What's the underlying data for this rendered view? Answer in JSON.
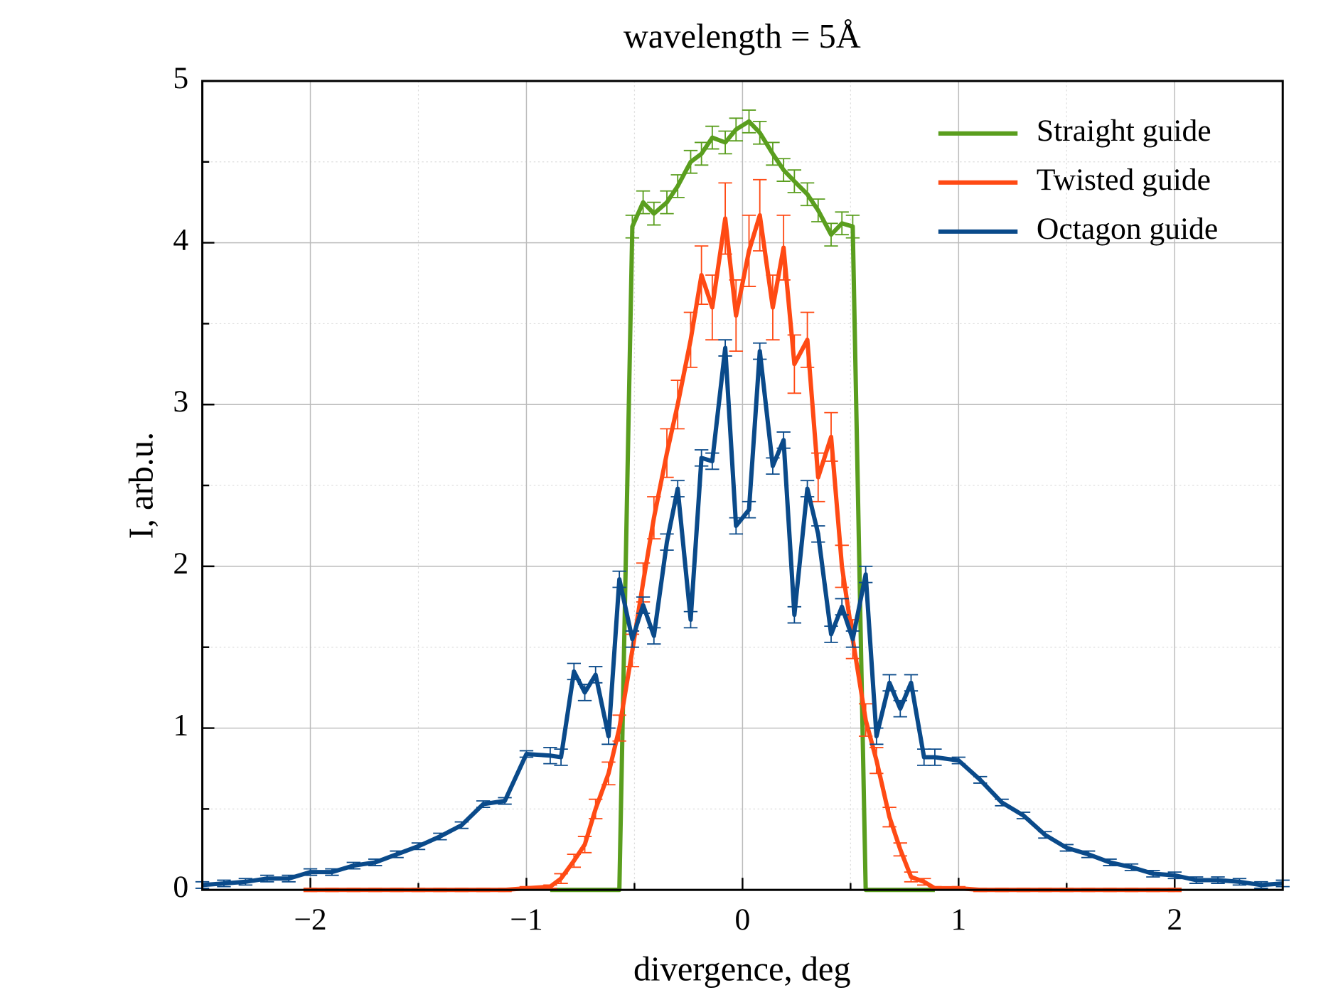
{
  "chart_data": {
    "type": "line",
    "title": "wavelength = 5Å",
    "xlabel": "divergence, deg",
    "ylabel": "I, arb.u.",
    "x": [
      -2.5,
      -2.4,
      -2.3,
      -2.2,
      -2.1,
      -2.0,
      -1.9,
      -1.8,
      -1.7,
      -1.6,
      -1.5,
      -1.4,
      -1.3,
      -1.2,
      -1.1,
      -1.0,
      -0.89,
      -0.84,
      -0.78,
      -0.73,
      -0.68,
      -0.62,
      -0.57,
      -0.51,
      -0.46,
      -0.41,
      -0.35,
      -0.3,
      -0.24,
      -0.19,
      -0.14,
      -0.08,
      -0.03,
      0.03,
      0.08,
      0.14,
      0.19,
      0.24,
      0.3,
      0.35,
      0.41,
      0.46,
      0.51,
      0.57,
      0.62,
      0.68,
      0.73,
      0.78,
      0.84,
      0.89,
      1.0,
      1.1,
      1.2,
      1.3,
      1.4,
      1.5,
      1.6,
      1.7,
      1.8,
      1.9,
      2.0,
      2.1,
      2.2,
      2.3,
      2.4,
      2.5
    ],
    "series": [
      {
        "name": "Straight guide",
        "color": "#5a9e1e",
        "values": [
          null,
          null,
          null,
          null,
          null,
          null,
          null,
          null,
          null,
          null,
          null,
          null,
          null,
          null,
          null,
          null,
          0,
          0,
          0,
          0,
          0,
          0,
          0,
          4.1,
          4.25,
          4.18,
          4.25,
          4.35,
          4.5,
          4.55,
          4.65,
          4.62,
          4.7,
          4.75,
          4.68,
          4.55,
          4.45,
          4.38,
          4.3,
          4.2,
          4.05,
          4.12,
          4.1,
          0,
          0,
          0,
          0,
          0,
          0,
          0,
          null,
          null,
          null,
          null,
          null,
          null,
          null,
          null,
          null,
          null,
          null,
          null,
          null,
          null,
          null,
          null
        ],
        "errors": [
          null,
          null,
          null,
          null,
          null,
          null,
          null,
          null,
          null,
          null,
          null,
          null,
          null,
          null,
          null,
          null,
          0,
          0,
          0,
          0,
          0,
          0,
          0,
          0.07,
          0.07,
          0.07,
          0.07,
          0.07,
          0.07,
          0.07,
          0.07,
          0.07,
          0.07,
          0.07,
          0.07,
          0.07,
          0.07,
          0.07,
          0.07,
          0.07,
          0.07,
          0.07,
          0.07,
          0,
          0,
          0,
          0,
          0,
          0,
          0,
          null,
          null,
          null,
          null,
          null,
          null,
          null,
          null,
          null,
          null,
          null,
          null,
          null,
          null,
          null,
          null
        ]
      },
      {
        "name": "Twisted guide",
        "color": "#ff4a14",
        "values": [
          null,
          null,
          null,
          null,
          null,
          0,
          0,
          0,
          0,
          0,
          0,
          0,
          0,
          0,
          0,
          0.01,
          0.02,
          0.07,
          0.18,
          0.28,
          0.5,
          0.72,
          1.0,
          1.48,
          1.9,
          2.3,
          2.7,
          3.0,
          3.4,
          3.8,
          3.6,
          4.15,
          3.55,
          3.95,
          4.17,
          3.6,
          3.97,
          3.25,
          3.4,
          2.55,
          2.8,
          2.0,
          1.55,
          1.05,
          0.8,
          0.45,
          0.25,
          0.08,
          0.05,
          0.01,
          0.01,
          0,
          0,
          0,
          0,
          0,
          0,
          0,
          0,
          0,
          0,
          null,
          null,
          null,
          null,
          null
        ],
        "errors": [
          null,
          null,
          null,
          null,
          null,
          0.01,
          0.01,
          0.01,
          0.01,
          0.01,
          0.01,
          0.01,
          0.01,
          0.01,
          0.01,
          0.01,
          0.01,
          0.03,
          0.04,
          0.05,
          0.06,
          0.07,
          0.08,
          0.1,
          0.12,
          0.13,
          0.15,
          0.15,
          0.17,
          0.18,
          0.2,
          0.22,
          0.22,
          0.22,
          0.22,
          0.2,
          0.2,
          0.18,
          0.17,
          0.15,
          0.15,
          0.13,
          0.12,
          0.1,
          0.08,
          0.06,
          0.04,
          0.03,
          0.02,
          0.01,
          0.01,
          0.01,
          0.01,
          0.01,
          0.01,
          0.01,
          0.01,
          0.01,
          0.01,
          0.01,
          0.01,
          null,
          null,
          null,
          null,
          null
        ]
      },
      {
        "name": "Octagon guide",
        "color": "#0a4a8a",
        "values": [
          0.03,
          0.04,
          0.05,
          0.07,
          0.07,
          0.11,
          0.11,
          0.15,
          0.17,
          0.22,
          0.27,
          0.33,
          0.4,
          0.53,
          0.55,
          0.84,
          0.83,
          0.82,
          1.35,
          1.22,
          1.33,
          0.95,
          1.92,
          1.55,
          1.76,
          1.57,
          2.15,
          2.48,
          1.67,
          2.67,
          2.65,
          3.35,
          2.25,
          2.35,
          3.33,
          2.62,
          2.78,
          1.7,
          2.48,
          2.2,
          1.58,
          1.75,
          1.55,
          1.95,
          0.95,
          1.28,
          1.12,
          1.28,
          0.82,
          0.82,
          0.8,
          0.68,
          0.54,
          0.46,
          0.34,
          0.26,
          0.22,
          0.17,
          0.14,
          0.1,
          0.09,
          0.06,
          0.06,
          0.05,
          0.03,
          0.04
        ],
        "errors": [
          0.02,
          0.02,
          0.02,
          0.02,
          0.02,
          0.02,
          0.02,
          0.02,
          0.02,
          0.02,
          0.02,
          0.02,
          0.02,
          0.02,
          0.02,
          0.02,
          0.05,
          0.05,
          0.05,
          0.05,
          0.05,
          0.05,
          0.05,
          0.05,
          0.05,
          0.05,
          0.05,
          0.05,
          0.05,
          0.05,
          0.05,
          0.05,
          0.05,
          0.05,
          0.05,
          0.05,
          0.05,
          0.05,
          0.05,
          0.05,
          0.05,
          0.05,
          0.05,
          0.05,
          0.05,
          0.05,
          0.05,
          0.05,
          0.05,
          0.05,
          0.02,
          0.02,
          0.02,
          0.02,
          0.02,
          0.02,
          0.02,
          0.02,
          0.02,
          0.02,
          0.02,
          0.02,
          0.02,
          0.02,
          0.02,
          0.02
        ]
      }
    ],
    "xlim": [
      -2.5,
      2.5
    ],
    "ylim": [
      0,
      5
    ],
    "xticks": [
      {
        "value": -2,
        "label": "−2"
      },
      {
        "value": -1,
        "label": "−1"
      },
      0,
      1,
      2
    ],
    "yticks": [
      0,
      1,
      2,
      3,
      4,
      5
    ],
    "minor_xticks": [
      -1.5,
      -0.5,
      0.5,
      1.5
    ],
    "minor_yticks": [
      0.5,
      1.5,
      2.5,
      3.5,
      4.5
    ],
    "grid": true,
    "legend": "upper right"
  }
}
